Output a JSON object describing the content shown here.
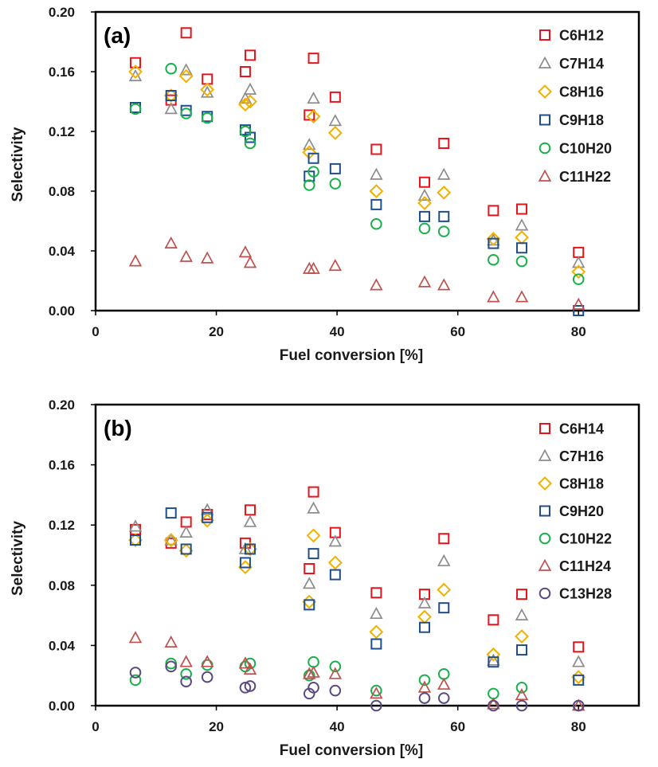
{
  "chart_data": [
    {
      "type": "scatter",
      "panel_label": "(a)",
      "xlabel": "Fuel conversion [%]",
      "ylabel": "Selectivity",
      "xlim": [
        0,
        90
      ],
      "ylim": [
        0,
        0.2
      ],
      "xticks": [
        "0",
        "20",
        "40",
        "60",
        "80"
      ],
      "yticks": [
        "0.00",
        "0.04",
        "0.08",
        "0.12",
        "0.16",
        "0.20"
      ],
      "legend_position": "top-right",
      "grid": false,
      "x": [
        6.6,
        12.5,
        15.0,
        18.5,
        24.8,
        25.6,
        35.4,
        36.1,
        39.7,
        46.5,
        54.5,
        57.7,
        65.9,
        70.6,
        80.0
      ],
      "series": [
        {
          "name": "C6H12",
          "marker": "square",
          "color": "#e8141b",
          "values": [
            0.166,
            0.141,
            0.186,
            0.155,
            0.16,
            0.171,
            0.131,
            0.169,
            0.143,
            0.108,
            0.086,
            0.112,
            0.067,
            0.068,
            0.039
          ]
        },
        {
          "name": "C7H14",
          "marker": "triangle",
          "color": "#8c8c8c",
          "values": [
            0.157,
            0.135,
            0.161,
            0.146,
            0.142,
            0.148,
            0.111,
            0.142,
            0.127,
            0.091,
            0.077,
            0.091,
            0.047,
            0.057,
            0.032
          ]
        },
        {
          "name": "C8H16",
          "marker": "diamond",
          "color": "#f2b100",
          "values": [
            0.16,
            0.144,
            0.157,
            0.148,
            0.138,
            0.14,
            0.106,
            0.13,
            0.119,
            0.08,
            0.072,
            0.079,
            0.048,
            0.049,
            0.026
          ]
        },
        {
          "name": "C9H18",
          "marker": "square",
          "color": "#1f4e8c",
          "values": [
            0.136,
            0.144,
            0.134,
            0.13,
            0.121,
            0.116,
            0.09,
            0.102,
            0.095,
            0.071,
            0.063,
            0.063,
            0.045,
            0.042,
            0.0
          ]
        },
        {
          "name": "C10H20",
          "marker": "circle",
          "color": "#19b04b",
          "values": [
            0.135,
            0.162,
            0.132,
            0.129,
            0.12,
            0.112,
            0.084,
            0.093,
            0.085,
            0.058,
            0.055,
            0.053,
            0.034,
            0.033,
            0.021
          ]
        },
        {
          "name": "C11H22",
          "marker": "triangle",
          "color": "#c0504d",
          "values": [
            0.033,
            0.045,
            0.036,
            0.035,
            0.039,
            0.032,
            0.028,
            0.028,
            0.03,
            0.017,
            0.019,
            0.017,
            0.009,
            0.009,
            0.004
          ]
        }
      ]
    },
    {
      "type": "scatter",
      "panel_label": "(b)",
      "xlabel": "Fuel conversion [%]",
      "ylabel": "Selectivity",
      "xlim": [
        0,
        90
      ],
      "ylim": [
        0,
        0.2
      ],
      "xticks": [
        "0",
        "20",
        "40",
        "60",
        "80"
      ],
      "yticks": [
        "0.00",
        "0.04",
        "0.08",
        "0.12",
        "0.16",
        "0.20"
      ],
      "legend_position": "top-right",
      "grid": false,
      "x": [
        6.6,
        12.5,
        15.0,
        18.5,
        24.8,
        25.6,
        35.4,
        36.1,
        39.7,
        46.5,
        54.5,
        57.7,
        65.9,
        70.6,
        80.0
      ],
      "series": [
        {
          "name": "C6H14",
          "marker": "square",
          "color": "#e8141b",
          "values": [
            0.117,
            0.108,
            0.122,
            0.127,
            0.108,
            0.13,
            0.091,
            0.142,
            0.115,
            0.075,
            0.074,
            0.111,
            0.057,
            0.074,
            0.039
          ]
        },
        {
          "name": "C7H16",
          "marker": "triangle",
          "color": "#8c8c8c",
          "values": [
            0.119,
            0.11,
            0.115,
            0.13,
            0.104,
            0.122,
            0.081,
            0.131,
            0.109,
            0.061,
            0.068,
            0.096,
            0.03,
            0.06,
            0.029
          ]
        },
        {
          "name": "C8H18",
          "marker": "diamond",
          "color": "#f2b100",
          "values": [
            0.11,
            0.11,
            0.103,
            0.123,
            0.092,
            0.104,
            0.069,
            0.113,
            0.095,
            0.049,
            0.059,
            0.077,
            0.034,
            0.046,
            0.019
          ]
        },
        {
          "name": "C9H20",
          "marker": "square",
          "color": "#1f4e8c",
          "values": [
            0.11,
            0.128,
            0.104,
            0.125,
            0.095,
            0.104,
            0.067,
            0.101,
            0.087,
            0.041,
            0.052,
            0.065,
            0.029,
            0.037,
            0.017
          ]
        },
        {
          "name": "C10H22",
          "marker": "circle",
          "color": "#19b04b",
          "values": [
            0.017,
            0.028,
            0.021,
            0.027,
            0.026,
            0.028,
            0.02,
            0.029,
            0.026,
            0.01,
            0.017,
            0.021,
            0.008,
            0.012,
            0.0
          ]
        },
        {
          "name": "C11H24",
          "marker": "triangle",
          "color": "#c0504d",
          "values": [
            0.045,
            0.042,
            0.029,
            0.029,
            0.028,
            0.024,
            0.021,
            0.022,
            0.021,
            0.008,
            0.012,
            0.014,
            0.001,
            0.007,
            0.0
          ]
        },
        {
          "name": "C13H28",
          "marker": "circle",
          "color": "#5b4a7d",
          "values": [
            0.022,
            0.026,
            0.016,
            0.019,
            0.012,
            0.013,
            0.008,
            0.012,
            0.01,
            0.0,
            0.005,
            0.005,
            0.0,
            0.0,
            0.0
          ]
        }
      ]
    }
  ]
}
